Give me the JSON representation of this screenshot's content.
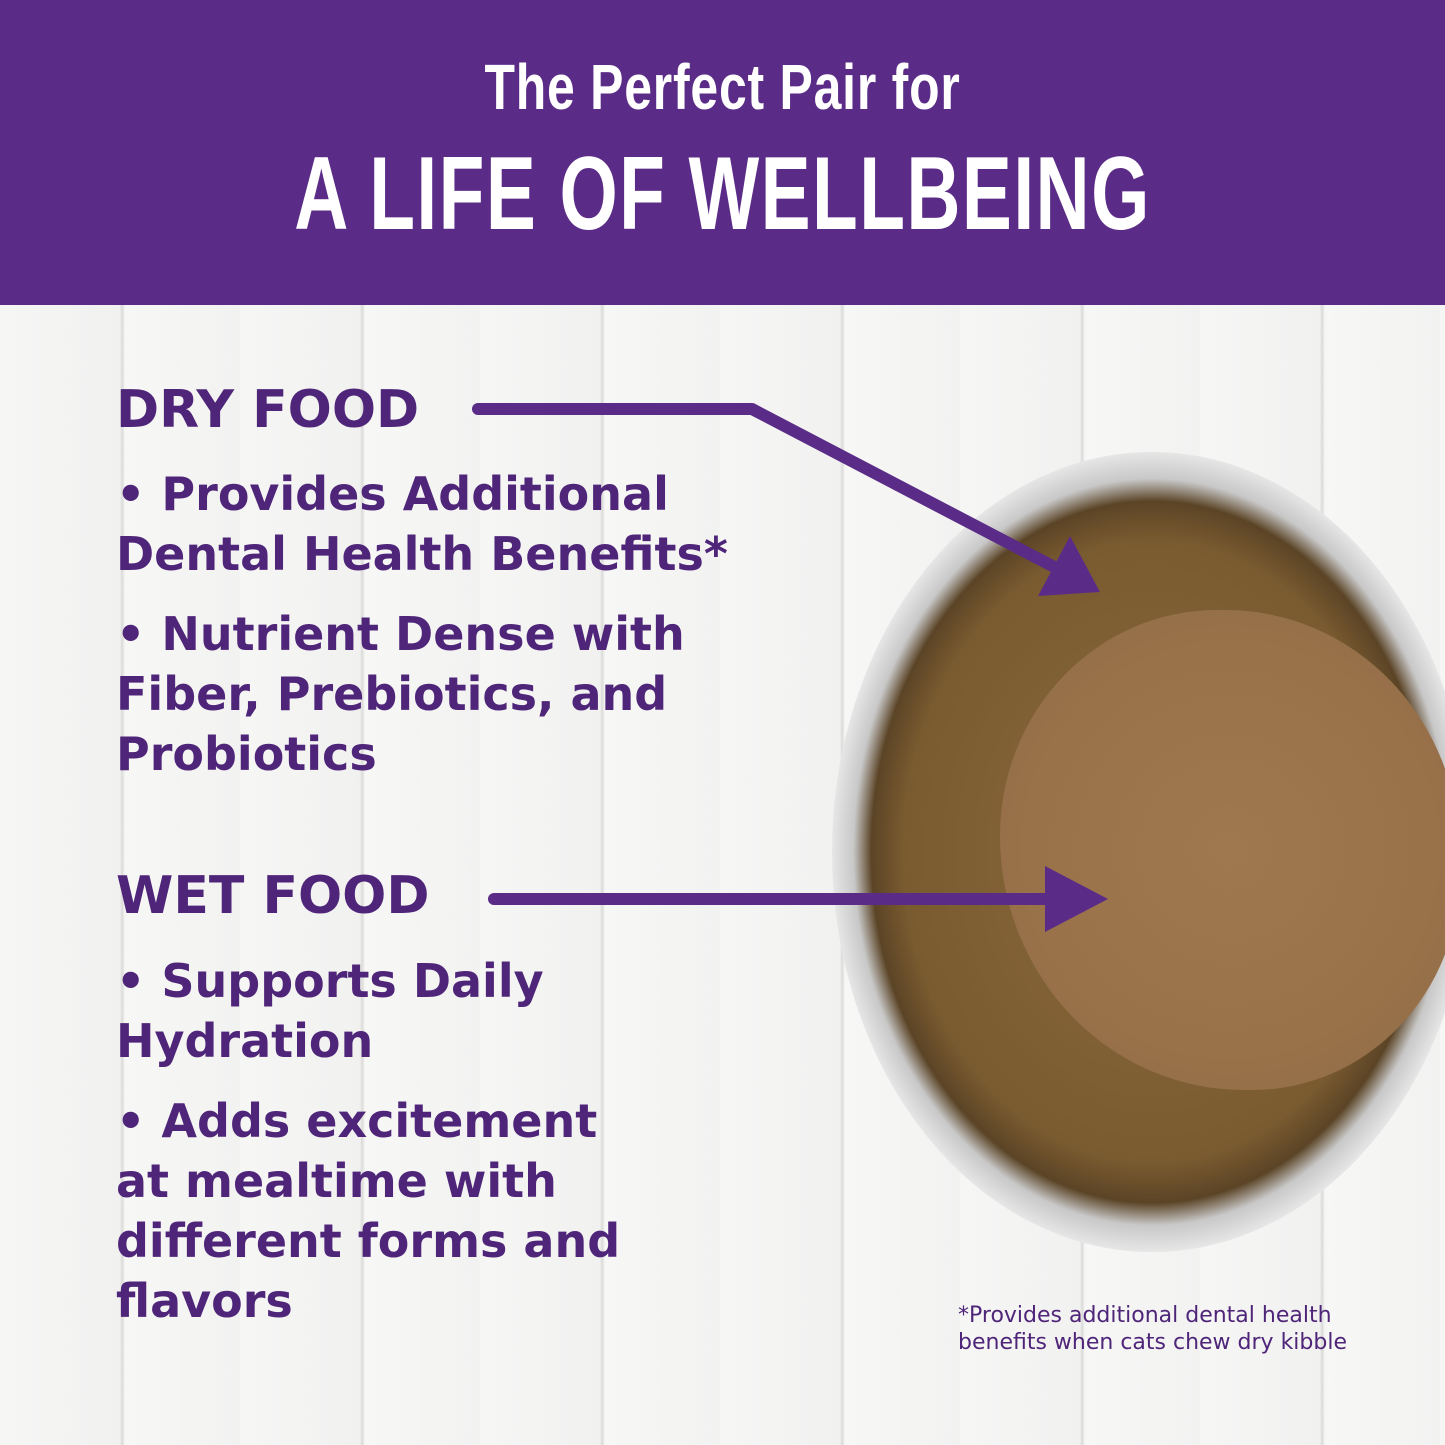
{
  "header": {
    "subtitle": "The Perfect Pair for",
    "title": "A LIFE OF WELLBEING"
  },
  "dry_food": {
    "heading": "DRY FOOD",
    "bullets": [
      "• Provides Additional Dental Health Benefits*",
      "• Nutrient Dense with Fiber, Prebiotics, and Probiotics"
    ]
  },
  "wet_food": {
    "heading": "WET FOOD",
    "bullets": [
      "• Supports Daily Hydration",
      "• Adds excitement at mealtime with different forms and flavors"
    ]
  },
  "footnote": "*Provides additional dental health benefits when cats chew dry kibble",
  "colors": {
    "brand_purple": "#5b2c87",
    "text_purple": "#4f2579"
  }
}
